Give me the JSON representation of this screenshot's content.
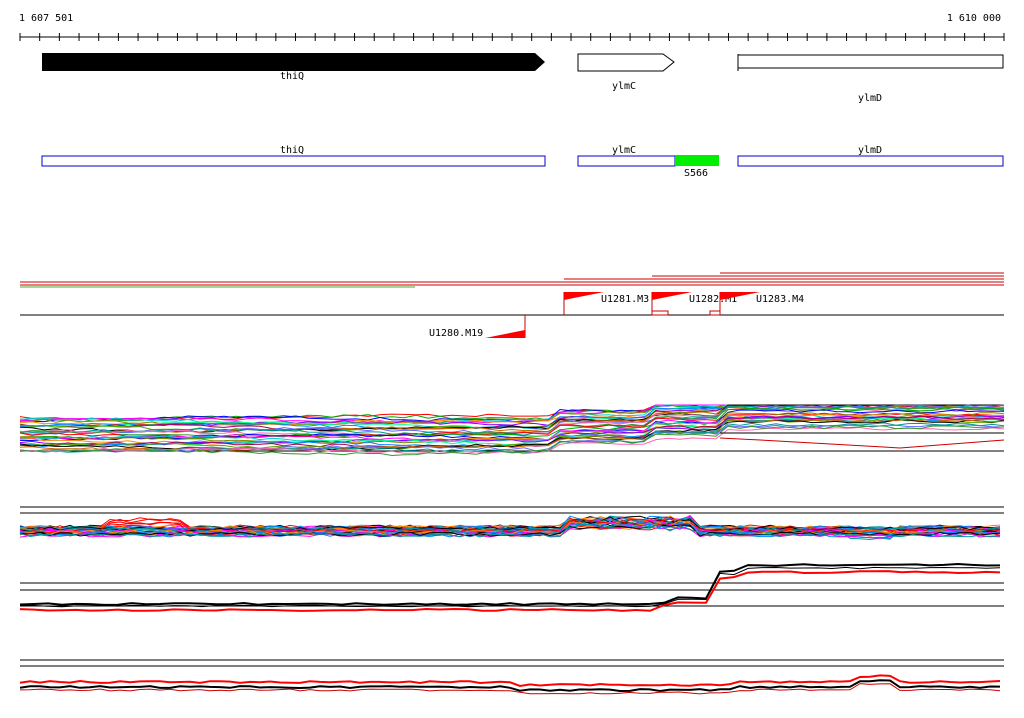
{
  "ruler": {
    "start_label": "1 607 501",
    "end_label": "1 610 000"
  },
  "genes": [
    {
      "name": "thiQ",
      "strand": "+",
      "style": "filled"
    },
    {
      "name": "ylmC",
      "strand": "+",
      "style": "outline"
    },
    {
      "name": "ylmD",
      "strand": "+",
      "style": "outline"
    }
  ],
  "features": [
    {
      "name": "thiQ",
      "kind": "cds"
    },
    {
      "name": "ylmC",
      "kind": "cds"
    },
    {
      "name": "S566",
      "kind": "segment"
    },
    {
      "name": "ylmD",
      "kind": "cds"
    }
  ],
  "transcription_units": [
    {
      "name": "U1280.M19"
    },
    {
      "name": "U1281.M3"
    },
    {
      "name": "U1282.M1"
    },
    {
      "name": "U1283.M4"
    }
  ],
  "colors": {
    "gene_fill": "#000000",
    "feature_outline": "#0000cc",
    "segment_fill": "#00ee00",
    "tu_marker": "#ff0000",
    "track_line": "#000000"
  }
}
